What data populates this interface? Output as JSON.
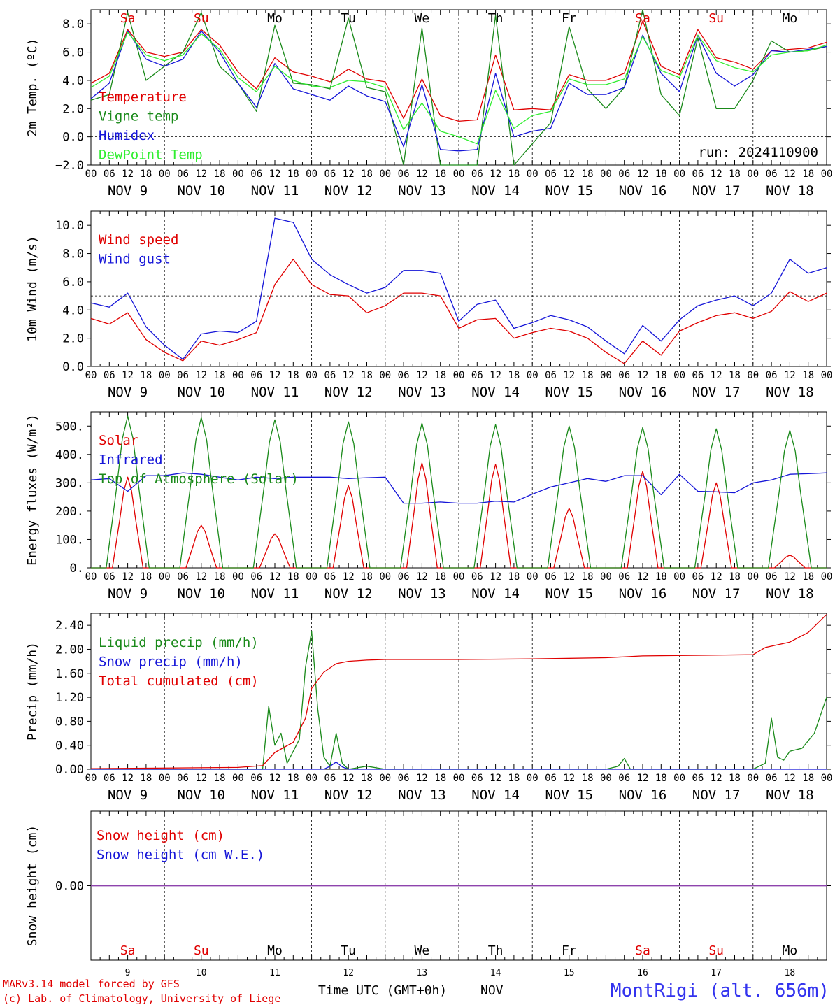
{
  "colors": {
    "red": "#e00000",
    "green": "#1a8a1a",
    "blue": "#1515d8",
    "lightgreen": "#30ee30",
    "purple": "#8e44ad"
  },
  "days": [
    {
      "abbr": "Sa",
      "num": "9",
      "weekend": true
    },
    {
      "abbr": "Su",
      "num": "10",
      "weekend": true
    },
    {
      "abbr": "Mo",
      "num": "11",
      "weekend": false
    },
    {
      "abbr": "Tu",
      "num": "12",
      "weekend": false
    },
    {
      "abbr": "We",
      "num": "13",
      "weekend": false
    },
    {
      "abbr": "Th",
      "num": "14",
      "weekend": false
    },
    {
      "abbr": "Fr",
      "num": "15",
      "weekend": false
    },
    {
      "abbr": "Sa",
      "num": "16",
      "weekend": true
    },
    {
      "abbr": "Su",
      "num": "17",
      "weekend": true
    },
    {
      "abbr": "Mo",
      "num": "18",
      "weekend": false
    }
  ],
  "date_labels": [
    "NOV  9",
    "NOV 10",
    "NOV 11",
    "NOV 12",
    "NOV 13",
    "NOV 14",
    "NOV 15",
    "NOV 16",
    "NOV 17",
    "NOV 18"
  ],
  "hour_labels": [
    "00",
    "06",
    "12",
    "18"
  ],
  "footer": {
    "credit_line1": "MARv3.14 model forced by GFS",
    "credit_line2": "(c) Lab. of Climatology, University of Liege",
    "time_label": "Time UTC (GMT+0h)",
    "month": "NOV",
    "station": "MontRigi (alt. 656m)"
  },
  "chart_data": [
    {
      "type": "line",
      "ylabel": "2m Temp. (ºC)",
      "ylim": [
        -2,
        9
      ],
      "yticks": [
        -2,
        0,
        2,
        4,
        6,
        8
      ],
      "tick_labels": [
        "−2.0",
        "0.0",
        "2.0",
        "4.0",
        "6.0",
        "8.0"
      ],
      "hline": 0,
      "annotation": "run: 2024110900",
      "x_unit": "hours since Nov 9 00 UTC",
      "series": [
        {
          "name": "Temperature",
          "color": "red",
          "x": [
            0,
            6,
            12,
            18,
            24,
            30,
            36,
            42,
            48,
            54,
            60,
            66,
            72,
            78,
            84,
            90,
            96,
            102,
            108,
            114,
            120,
            126,
            132,
            138,
            144,
            150,
            156,
            162,
            168,
            174,
            180,
            186,
            192,
            198,
            204,
            210,
            216,
            222,
            228,
            234,
            240
          ],
          "values": [
            3.8,
            4.5,
            7.6,
            6.0,
            5.7,
            6.0,
            7.6,
            6.5,
            4.6,
            3.4,
            5.6,
            4.6,
            4.3,
            3.9,
            4.8,
            4.1,
            3.9,
            1.3,
            4.1,
            1.5,
            1.1,
            1.2,
            5.8,
            1.9,
            2.0,
            1.9,
            4.4,
            4.0,
            4.0,
            4.5,
            8.2,
            5.0,
            4.4,
            7.6,
            5.6,
            5.3,
            4.8,
            6.1,
            6.2,
            6.3,
            6.7
          ]
        },
        {
          "name": "Vigne temp",
          "color": "green",
          "x": [
            0,
            6,
            12,
            18,
            24,
            30,
            36,
            42,
            48,
            54,
            60,
            66,
            72,
            78,
            84,
            90,
            96,
            102,
            108,
            114,
            120,
            126,
            132,
            138,
            144,
            150,
            156,
            162,
            168,
            174,
            180,
            186,
            192,
            198,
            204,
            210,
            216,
            222,
            228,
            234,
            240
          ],
          "values": [
            2.6,
            3.0,
            8.8,
            4.0,
            5.0,
            6.0,
            8.8,
            5.0,
            3.8,
            1.8,
            7.9,
            3.8,
            3.7,
            3.4,
            8.4,
            3.5,
            3.2,
            -2.0,
            7.7,
            -2.0,
            -2.0,
            -2.0,
            8.6,
            -2.0,
            -0.5,
            1.0,
            7.8,
            3.4,
            2.0,
            3.5,
            9.0,
            3.0,
            1.5,
            7.0,
            2.0,
            2.0,
            4.0,
            6.8,
            6.0,
            6.1,
            6.4
          ]
        },
        {
          "name": "Humidex",
          "color": "blue",
          "x": [
            0,
            6,
            12,
            18,
            24,
            30,
            36,
            42,
            48,
            54,
            60,
            66,
            72,
            78,
            84,
            90,
            96,
            102,
            108,
            114,
            120,
            126,
            132,
            138,
            144,
            150,
            156,
            162,
            168,
            174,
            180,
            186,
            192,
            198,
            204,
            210,
            216,
            222,
            228,
            234,
            240
          ],
          "values": [
            2.7,
            3.8,
            7.5,
            5.5,
            5.0,
            5.5,
            7.5,
            6.0,
            3.8,
            2.1,
            5.2,
            3.4,
            3.0,
            2.6,
            3.6,
            2.9,
            2.5,
            -0.7,
            3.7,
            -0.9,
            -1.0,
            -0.9,
            4.5,
            0.0,
            0.4,
            0.6,
            3.8,
            3.0,
            3.0,
            3.5,
            7.2,
            4.5,
            3.2,
            7.2,
            4.5,
            3.6,
            4.4,
            6.1,
            6.0,
            6.2,
            6.4
          ]
        },
        {
          "name": "DewPoint Temp",
          "color": "lightgreen",
          "x": [
            0,
            6,
            12,
            18,
            24,
            30,
            36,
            42,
            48,
            54,
            60,
            66,
            72,
            78,
            84,
            90,
            96,
            102,
            108,
            114,
            120,
            126,
            132,
            138,
            144,
            150,
            156,
            162,
            168,
            174,
            180,
            186,
            192,
            198,
            204,
            210,
            216,
            222,
            228,
            234,
            240
          ],
          "values": [
            3.5,
            4.3,
            7.4,
            5.8,
            5.4,
            5.8,
            7.3,
            6.2,
            4.2,
            3.2,
            5.0,
            4.0,
            3.6,
            3.5,
            4.0,
            3.9,
            3.5,
            0.5,
            2.4,
            0.4,
            0.0,
            -0.5,
            3.3,
            0.6,
            1.5,
            1.8,
            4.1,
            3.7,
            3.7,
            4.1,
            7.1,
            4.7,
            4.2,
            7.2,
            5.4,
            4.9,
            4.6,
            5.8,
            6.0,
            6.1,
            6.5
          ]
        }
      ]
    },
    {
      "type": "line",
      "ylabel": "10m Wind (m/s)",
      "ylim": [
        0,
        11
      ],
      "yticks": [
        0,
        2,
        4,
        6,
        8,
        10
      ],
      "tick_labels": [
        "0.0",
        "2.0",
        "4.0",
        "6.0",
        "8.0",
        "10.0"
      ],
      "hline": 5,
      "series": [
        {
          "name": "Wind speed",
          "color": "red",
          "x": [
            0,
            6,
            12,
            18,
            24,
            30,
            36,
            42,
            48,
            54,
            60,
            66,
            72,
            78,
            84,
            90,
            96,
            102,
            108,
            114,
            120,
            126,
            132,
            138,
            144,
            150,
            156,
            162,
            168,
            174,
            180,
            186,
            192,
            198,
            204,
            210,
            216,
            222,
            228,
            234,
            240
          ],
          "values": [
            3.4,
            3.0,
            3.8,
            1.9,
            1.0,
            0.4,
            1.8,
            1.5,
            1.9,
            2.4,
            5.8,
            7.6,
            5.8,
            5.1,
            5.0,
            3.8,
            4.3,
            5.2,
            5.2,
            5.0,
            2.7,
            3.3,
            3.4,
            2.0,
            2.4,
            2.7,
            2.5,
            2.0,
            1.0,
            0.2,
            1.8,
            0.8,
            2.5,
            3.1,
            3.6,
            3.8,
            3.4,
            3.9,
            5.3,
            4.6,
            5.2
          ]
        },
        {
          "name": "Wind gust",
          "color": "blue",
          "x": [
            0,
            6,
            12,
            18,
            24,
            30,
            36,
            42,
            48,
            54,
            60,
            66,
            72,
            78,
            84,
            90,
            96,
            102,
            108,
            114,
            120,
            126,
            132,
            138,
            144,
            150,
            156,
            162,
            168,
            174,
            180,
            186,
            192,
            198,
            204,
            210,
            216,
            222,
            228,
            234,
            240
          ],
          "values": [
            4.5,
            4.2,
            5.2,
            2.8,
            1.5,
            0.5,
            2.3,
            2.5,
            2.4,
            3.2,
            10.5,
            10.2,
            7.6,
            6.5,
            5.8,
            5.2,
            5.6,
            6.8,
            6.8,
            6.6,
            3.2,
            4.4,
            4.7,
            2.7,
            3.1,
            3.6,
            3.3,
            2.8,
            1.8,
            0.9,
            2.9,
            1.8,
            3.3,
            4.3,
            4.7,
            5.0,
            4.3,
            5.2,
            7.6,
            6.6,
            7.0
          ]
        }
      ]
    },
    {
      "type": "line",
      "ylabel": "Energy fluxes (W/m²)",
      "ylim": [
        0,
        550
      ],
      "yticks": [
        0,
        100,
        200,
        300,
        400,
        500
      ],
      "tick_labels": [
        "0.",
        "100.",
        "200.",
        "300.",
        "400.",
        "500."
      ],
      "series": [
        {
          "name": "Solar",
          "color": "red",
          "peaks": [
            320,
            150,
            120,
            290,
            370,
            365,
            210,
            340,
            300,
            45
          ]
        },
        {
          "name": "Infrared",
          "color": "blue",
          "x": [
            0,
            6,
            12,
            18,
            24,
            30,
            36,
            42,
            48,
            54,
            60,
            66,
            72,
            78,
            84,
            90,
            96,
            102,
            108,
            114,
            120,
            126,
            132,
            138,
            144,
            150,
            156,
            162,
            168,
            174,
            180,
            186,
            192,
            198,
            204,
            210,
            216,
            222,
            228,
            234,
            240
          ],
          "values": [
            310,
            315,
            270,
            325,
            325,
            335,
            330,
            320,
            310,
            320,
            315,
            320,
            320,
            320,
            315,
            318,
            320,
            228,
            228,
            232,
            228,
            228,
            235,
            232,
            260,
            285,
            300,
            315,
            305,
            325,
            325,
            258,
            330,
            270,
            268,
            265,
            300,
            310,
            330,
            332,
            335
          ]
        },
        {
          "name": "Top of Atmosphere (Solar)",
          "color": "green",
          "peaks": [
            535,
            530,
            522,
            515,
            510,
            505,
            500,
            495,
            490,
            485
          ]
        }
      ]
    },
    {
      "type": "line",
      "ylabel": "Precip (mm/h)",
      "ylim": [
        0,
        2.6
      ],
      "yticks": [
        0,
        0.4,
        0.8,
        1.2,
        1.6,
        2.0,
        2.4
      ],
      "tick_labels": [
        "0.00",
        "0.40",
        "0.80",
        "1.20",
        "1.60",
        "2.00",
        "2.40"
      ],
      "series": [
        {
          "name": "Liquid precip (mm/h)",
          "color": "green",
          "x": [
            0,
            48,
            56,
            58,
            60,
            62,
            64,
            66,
            68,
            70,
            72,
            74,
            76,
            78,
            80,
            82,
            84,
            90,
            96,
            168,
            172,
            174,
            176,
            216,
            220,
            222,
            224,
            226,
            228,
            232,
            236,
            240
          ],
          "values": [
            0,
            0,
            0,
            1.05,
            0.4,
            0.6,
            0.1,
            0.3,
            0.5,
            1.7,
            2.3,
            1.0,
            0.2,
            0.05,
            0.6,
            0.1,
            0,
            0.05,
            0,
            0,
            0.05,
            0.18,
            0,
            0,
            0.1,
            0.85,
            0.2,
            0.15,
            0.3,
            0.35,
            0.6,
            1.2
          ]
        },
        {
          "name": "Snow precip (mm/h)",
          "color": "blue",
          "x": [
            0,
            76,
            78,
            80,
            82,
            84,
            240
          ],
          "values": [
            0,
            0,
            0.05,
            0.12,
            0.04,
            0,
            0
          ]
        },
        {
          "name": "Total cumulated (cm)",
          "color": "red",
          "x": [
            0,
            48,
            56,
            60,
            66,
            70,
            72,
            76,
            80,
            84,
            90,
            96,
            120,
            144,
            168,
            180,
            216,
            220,
            228,
            234,
            240
          ],
          "values": [
            0.01,
            0.03,
            0.06,
            0.28,
            0.45,
            0.85,
            1.35,
            1.62,
            1.76,
            1.8,
            1.82,
            1.83,
            1.83,
            1.84,
            1.86,
            1.89,
            1.91,
            2.03,
            2.12,
            2.28,
            2.58
          ]
        }
      ]
    },
    {
      "type": "line",
      "ylabel": "Snow height (cm)",
      "ylim": [
        -1,
        1
      ],
      "yticks": [
        0
      ],
      "tick_labels": [
        "0.00"
      ],
      "series": [
        {
          "name": "Snow height (cm)",
          "color": "red",
          "x": [
            0,
            240
          ],
          "values": [
            0,
            0
          ]
        },
        {
          "name": "Snow height (cm W.E.)",
          "color": "blue",
          "x": [
            0,
            240
          ],
          "values": [
            0,
            0
          ]
        }
      ]
    }
  ]
}
